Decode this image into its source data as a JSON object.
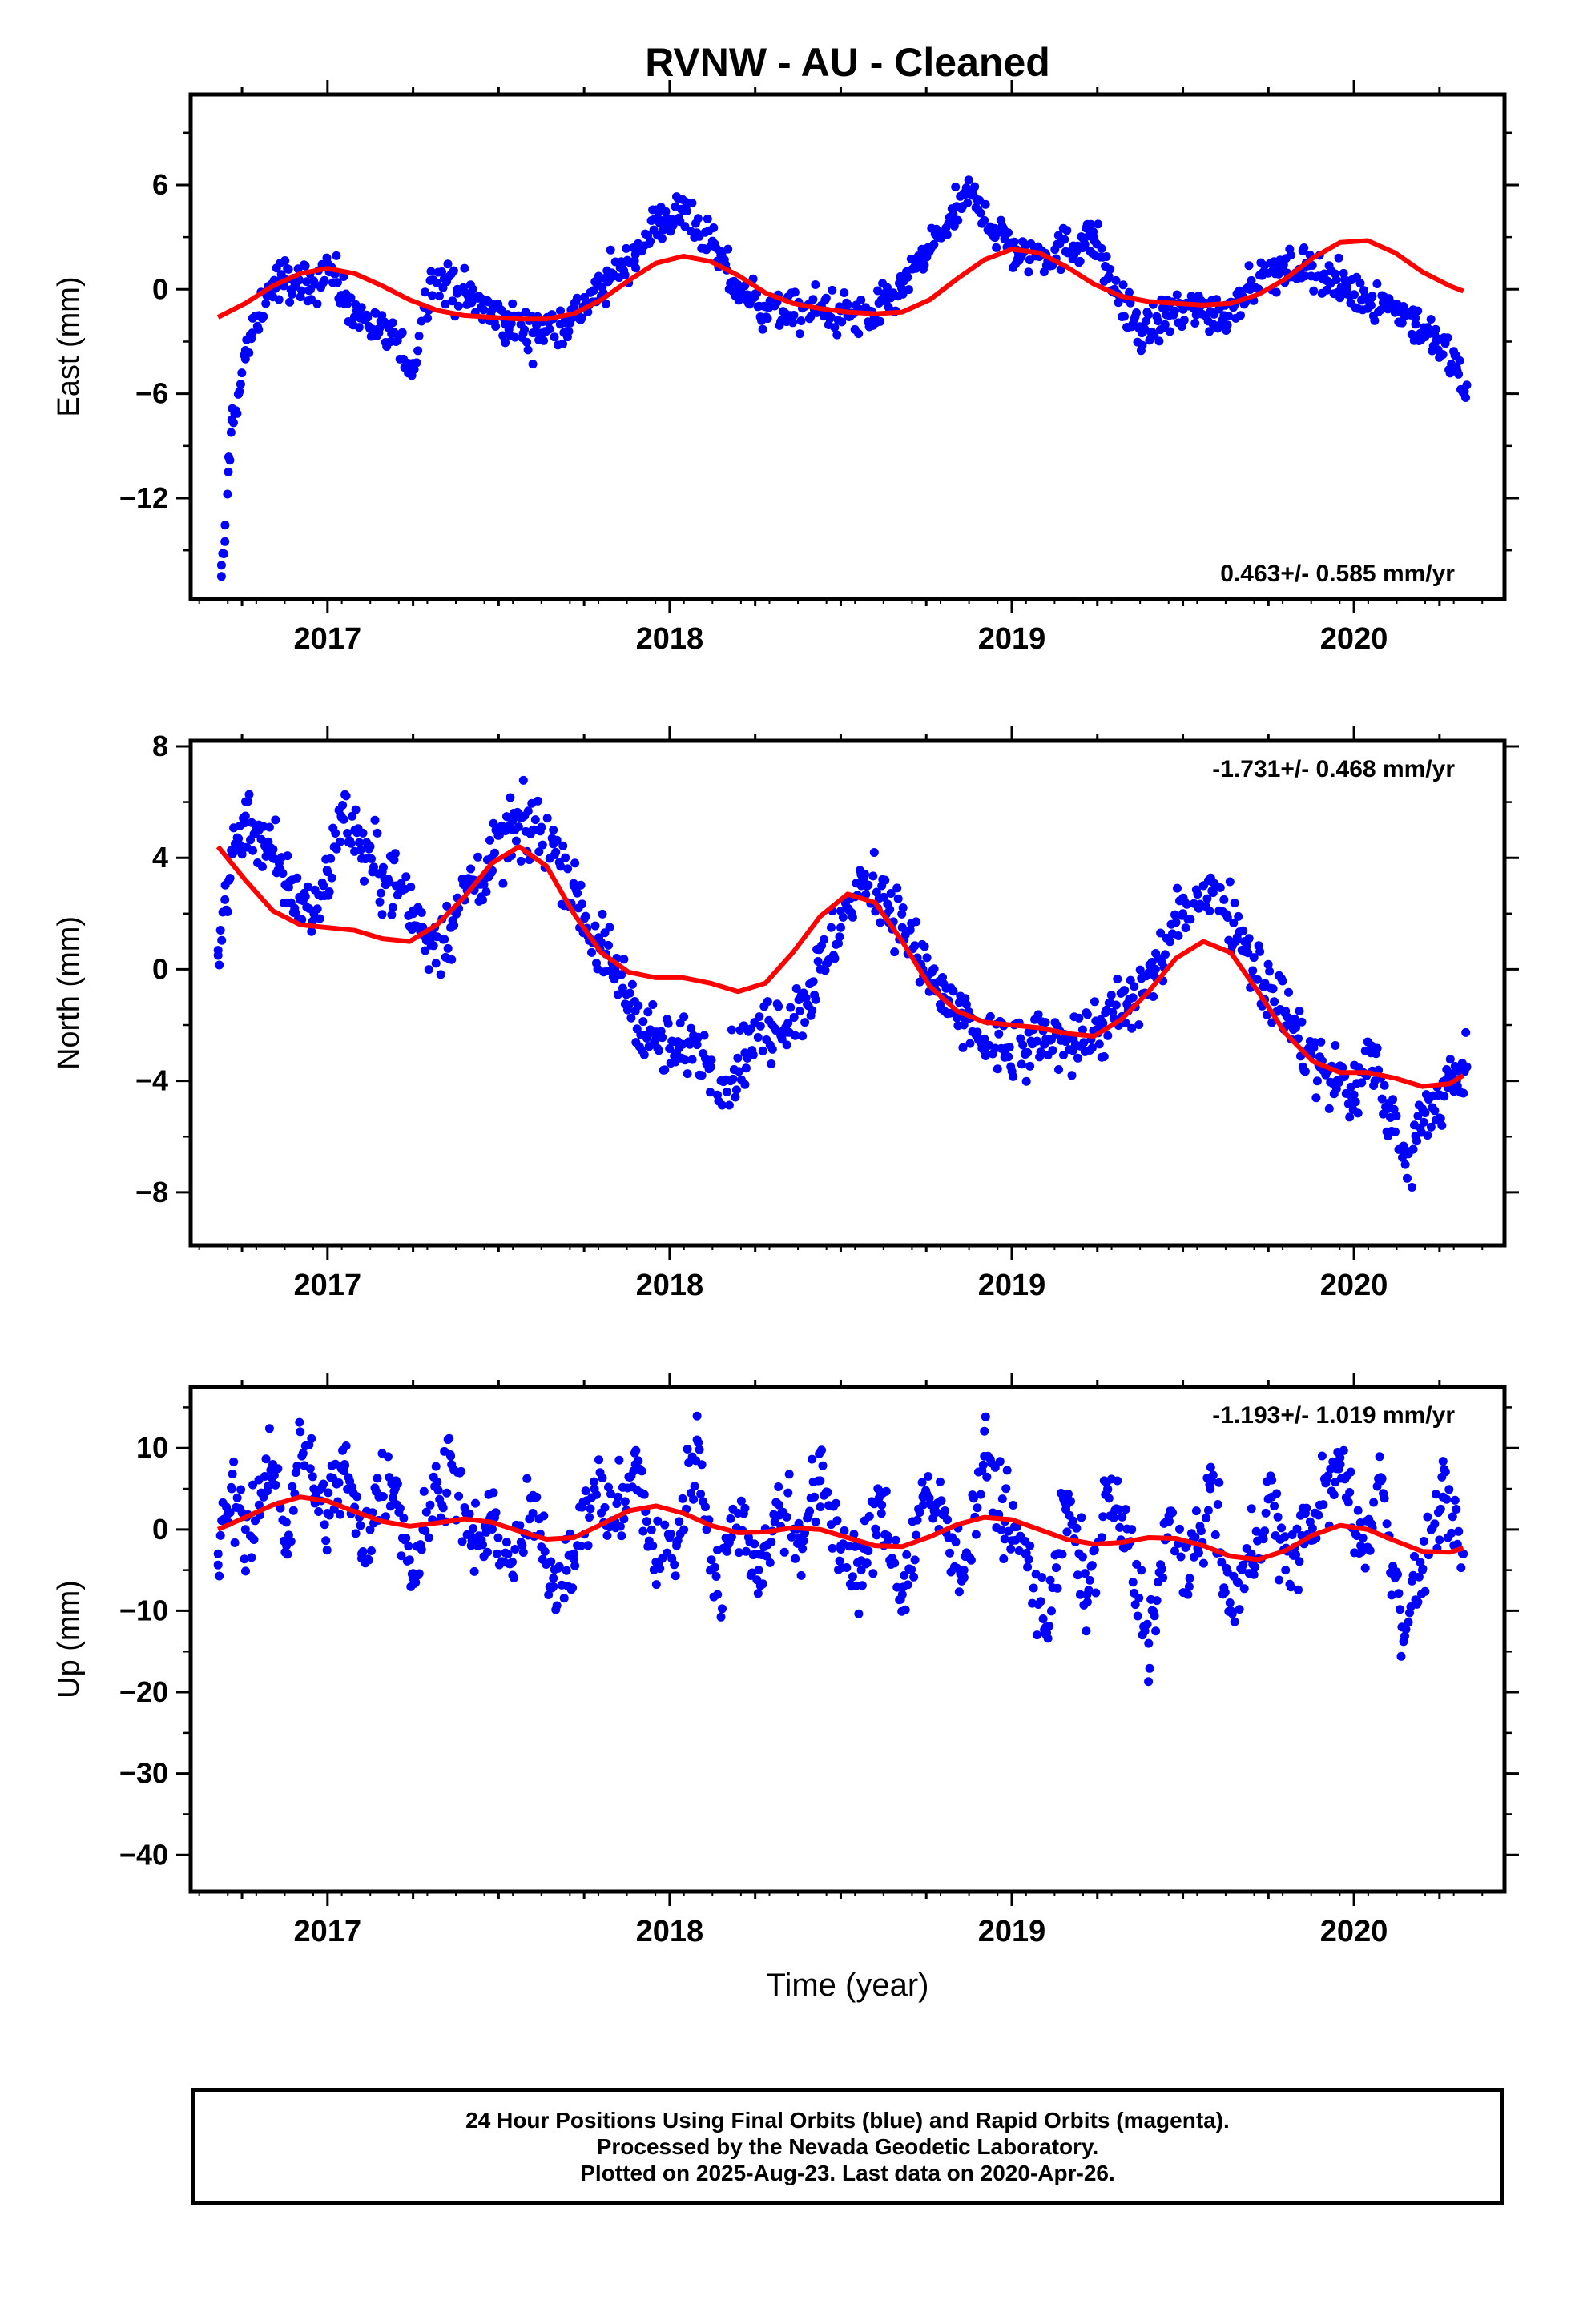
{
  "title": "RVNW  - AU - Cleaned",
  "colors": {
    "points": "#0000ff",
    "fit": "#ff0000",
    "frame": "#000000"
  },
  "footer": {
    "line1": "24 Hour Positions Using Final Orbits (blue) and Rapid Orbits (magenta).",
    "line2": "Processed by the Nevada Geodetic Laboratory.",
    "line3": "Plotted on 2025-Aug-23. Last data on 2020-Apr-26."
  },
  "chart_data": [
    {
      "type": "scatter",
      "ylabel": "East (mm)",
      "xlabel": "",
      "xlim": [
        2016.6,
        2020.44
      ],
      "ylim": [
        -17.8,
        11.2
      ],
      "yticks": [
        -12,
        -6,
        0,
        6
      ],
      "xticks": [
        2017,
        2018,
        2019,
        2020
      ],
      "rate_label": "0.463+/- 0.585 mm/yr",
      "rate_position": "bottom-right",
      "grid": false,
      "series": [
        {
          "type": "scatter",
          "x": [
            2016.69,
            2016.7,
            2016.71,
            2016.72,
            2016.74,
            2016.76,
            2016.78,
            2016.8,
            2016.83,
            2016.86,
            2016.9,
            2016.95,
            2017.0,
            2017.05,
            2017.1,
            2017.15,
            2017.2,
            2017.25,
            2017.3,
            2017.38,
            2017.45,
            2017.52,
            2017.6,
            2017.68,
            2017.75,
            2017.82,
            2017.9,
            2017.97,
            2018.05,
            2018.12,
            2018.2,
            2018.28,
            2018.36,
            2018.44,
            2018.52,
            2018.6,
            2018.68,
            2018.75,
            2018.82,
            2018.88,
            2018.95,
            2019.02,
            2019.1,
            2019.18,
            2019.24,
            2019.3,
            2019.38,
            2019.46,
            2019.55,
            2019.62,
            2019.7,
            2019.78,
            2019.86,
            2019.92,
            2019.98,
            2020.05,
            2020.12,
            2020.18,
            2020.24,
            2020.3,
            2020.33
          ],
          "y": [
            -16.5,
            -14.5,
            -10.5,
            -7.5,
            -6.0,
            -4.0,
            -2.5,
            -1.5,
            0.0,
            0.5,
            0.5,
            0.0,
            1.5,
            -0.5,
            -1.5,
            -2.5,
            -3.0,
            -4.5,
            0.5,
            0.0,
            -1.0,
            -2.0,
            -2.5,
            -2.0,
            -1.0,
            0.5,
            2.0,
            4.0,
            4.5,
            2.5,
            0.0,
            -1.0,
            -1.5,
            -1.0,
            -1.5,
            -1.5,
            0.0,
            2.0,
            4.0,
            5.5,
            3.5,
            2.0,
            2.0,
            2.5,
            3.0,
            0.0,
            -2.5,
            -1.5,
            -1.0,
            -1.5,
            0.5,
            1.0,
            1.5,
            0.5,
            0.0,
            -0.5,
            -1.0,
            -2.0,
            -3.0,
            -4.5,
            -5.5
          ]
        },
        {
          "type": "line",
          "name": "fit",
          "x": [
            2016.68,
            2016.76,
            2016.84,
            2016.92,
            2017.0,
            2017.08,
            2017.16,
            2017.24,
            2017.32,
            2017.4,
            2017.48,
            2017.56,
            2017.64,
            2017.72,
            2017.8,
            2017.88,
            2017.96,
            2018.04,
            2018.12,
            2018.2,
            2018.28,
            2018.36,
            2018.44,
            2018.52,
            2018.6,
            2018.68,
            2018.76,
            2018.84,
            2018.92,
            2019.0,
            2019.08,
            2019.16,
            2019.24,
            2019.32,
            2019.4,
            2019.48,
            2019.56,
            2019.64,
            2019.72,
            2019.8,
            2019.88,
            2019.96,
            2020.04,
            2020.12,
            2020.2,
            2020.28,
            2020.32
          ],
          "y": [
            -1.6,
            -0.8,
            0.2,
            0.9,
            1.2,
            0.9,
            0.2,
            -0.6,
            -1.2,
            -1.5,
            -1.6,
            -1.7,
            -1.7,
            -1.4,
            -0.6,
            0.5,
            1.5,
            1.9,
            1.6,
            0.8,
            -0.2,
            -0.8,
            -1.1,
            -1.3,
            -1.4,
            -1.3,
            -0.6,
            0.6,
            1.7,
            2.3,
            2.1,
            1.3,
            0.3,
            -0.4,
            -0.7,
            -0.8,
            -0.9,
            -0.8,
            -0.3,
            0.6,
            1.8,
            2.7,
            2.8,
            2.1,
            1.0,
            0.2,
            -0.1
          ]
        }
      ]
    },
    {
      "type": "scatter",
      "ylabel": "North (mm)",
      "xlabel": "",
      "xlim": [
        2016.6,
        2020.44
      ],
      "ylim": [
        -9.9,
        8.2
      ],
      "yticks": [
        -8,
        -4,
        0,
        4,
        8
      ],
      "xticks": [
        2017,
        2018,
        2019,
        2020
      ],
      "rate_label": "-1.731+/- 0.468 mm/yr",
      "rate_position": "top-right",
      "grid": false,
      "series": [
        {
          "type": "scatter",
          "x": [
            2016.68,
            2016.7,
            2016.73,
            2016.76,
            2016.8,
            2016.84,
            2016.88,
            2016.92,
            2016.96,
            2017.0,
            2017.04,
            2017.08,
            2017.12,
            2017.16,
            2017.2,
            2017.25,
            2017.3,
            2017.36,
            2017.42,
            2017.48,
            2017.54,
            2017.6,
            2017.66,
            2017.72,
            2017.78,
            2017.84,
            2017.9,
            2017.96,
            2018.02,
            2018.08,
            2018.12,
            2018.16,
            2018.22,
            2018.3,
            2018.38,
            2018.44,
            2018.5,
            2018.56,
            2018.62,
            2018.68,
            2018.74,
            2018.8,
            2018.86,
            2018.92,
            2018.98,
            2019.04,
            2019.1,
            2019.18,
            2019.26,
            2019.34,
            2019.42,
            2019.5,
            2019.56,
            2019.62,
            2019.68,
            2019.74,
            2019.8,
            2019.86,
            2019.9,
            2019.95,
            2020.0,
            2020.05,
            2020.1,
            2020.15,
            2020.2,
            2020.25,
            2020.3,
            2020.33
          ],
          "y": [
            0.5,
            2.5,
            4.5,
            5.5,
            5.0,
            4.0,
            3.0,
            2.5,
            2.0,
            3.5,
            5.5,
            5.0,
            4.0,
            3.5,
            3.0,
            2.0,
            1.0,
            1.5,
            3.0,
            4.0,
            5.0,
            5.0,
            4.5,
            3.0,
            1.0,
            0.0,
            -1.5,
            -2.5,
            -3.0,
            -2.5,
            -3.5,
            -4.0,
            -3.0,
            -2.0,
            -1.5,
            0.0,
            1.5,
            3.0,
            3.0,
            1.5,
            0.0,
            -1.0,
            -2.0,
            -2.5,
            -3.0,
            -3.0,
            -2.5,
            -2.5,
            -2.0,
            -1.5,
            0.0,
            2.0,
            3.0,
            2.5,
            1.0,
            -0.5,
            -1.5,
            -3.0,
            -3.5,
            -4.0,
            -4.5,
            -3.0,
            -5.0,
            -7.0,
            -5.0,
            -4.5,
            -4.0,
            -3.5
          ]
        },
        {
          "type": "line",
          "name": "fit",
          "x": [
            2016.68,
            2016.76,
            2016.84,
            2016.92,
            2017.0,
            2017.08,
            2017.16,
            2017.24,
            2017.32,
            2017.4,
            2017.48,
            2017.56,
            2017.64,
            2017.72,
            2017.8,
            2017.88,
            2017.96,
            2018.04,
            2018.12,
            2018.2,
            2018.28,
            2018.36,
            2018.44,
            2018.52,
            2018.6,
            2018.68,
            2018.76,
            2018.84,
            2018.92,
            2019.0,
            2019.08,
            2019.16,
            2019.24,
            2019.32,
            2019.4,
            2019.48,
            2019.56,
            2019.64,
            2019.72,
            2019.8,
            2019.88,
            2019.96,
            2020.04,
            2020.12,
            2020.2,
            2020.28,
            2020.32
          ],
          "y": [
            4.4,
            3.2,
            2.1,
            1.6,
            1.5,
            1.4,
            1.1,
            1.0,
            1.6,
            2.6,
            3.8,
            4.4,
            3.7,
            2.0,
            0.6,
            -0.1,
            -0.3,
            -0.3,
            -0.5,
            -0.8,
            -0.5,
            0.6,
            1.9,
            2.7,
            2.4,
            1.0,
            -0.6,
            -1.5,
            -1.9,
            -2.0,
            -2.1,
            -2.3,
            -2.4,
            -1.8,
            -0.8,
            0.4,
            1.0,
            0.6,
            -0.8,
            -2.3,
            -3.3,
            -3.7,
            -3.7,
            -3.9,
            -4.2,
            -4.1,
            -3.8
          ]
        }
      ]
    },
    {
      "type": "scatter",
      "ylabel": "Up (mm)",
      "xlabel": "Time (year)",
      "xlim": [
        2016.6,
        2020.44
      ],
      "ylim": [
        -44.5,
        17.5
      ],
      "yticks": [
        -40,
        -30,
        -20,
        -10,
        0,
        10
      ],
      "xticks": [
        2017,
        2018,
        2019,
        2020
      ],
      "rate_label": "-1.193+/- 1.019 mm/yr",
      "rate_position": "top-right",
      "grid": false,
      "series": [
        {
          "type": "scatter",
          "x": [
            2016.68,
            2016.72,
            2016.76,
            2016.8,
            2016.84,
            2016.88,
            2016.92,
            2016.96,
            2017.0,
            2017.05,
            2017.1,
            2017.15,
            2017.2,
            2017.25,
            2017.3,
            2017.36,
            2017.42,
            2017.48,
            2017.54,
            2017.6,
            2017.66,
            2017.72,
            2017.78,
            2017.84,
            2017.9,
            2017.96,
            2018.02,
            2018.08,
            2018.14,
            2018.2,
            2018.26,
            2018.32,
            2018.38,
            2018.44,
            2018.5,
            2018.56,
            2018.62,
            2018.68,
            2018.74,
            2018.8,
            2018.86,
            2018.92,
            2018.98,
            2019.04,
            2019.1,
            2019.16,
            2019.22,
            2019.28,
            2019.34,
            2019.4,
            2019.46,
            2019.52,
            2019.58,
            2019.64,
            2019.7,
            2019.76,
            2019.8,
            2019.9,
            2019.96,
            2020.02,
            2020.08,
            2020.14,
            2020.2,
            2020.26,
            2020.32
          ],
          "y": [
            -3,
            5,
            0,
            3,
            8,
            -2,
            12,
            5,
            2,
            8,
            -3,
            4,
            6,
            -6,
            3,
            9,
            -2,
            1,
            -4,
            2,
            -6,
            -3,
            5,
            1,
            8,
            -4,
            -2,
            11,
            -8,
            2,
            -5,
            3,
            -1,
            6,
            -2,
            -5,
            3,
            -8,
            4,
            2,
            -5,
            9,
            1,
            -3,
            -12,
            3,
            -8,
            5,
            -2,
            -14,
            1,
            -6,
            5,
            -10,
            -3,
            4,
            -5,
            3,
            8,
            -2,
            6,
            -12,
            -5,
            4,
            -3
          ]
        },
        {
          "type": "line",
          "name": "fit",
          "x": [
            2016.68,
            2016.76,
            2016.84,
            2016.92,
            2017.0,
            2017.08,
            2017.16,
            2017.24,
            2017.32,
            2017.4,
            2017.48,
            2017.56,
            2017.64,
            2017.72,
            2017.8,
            2017.88,
            2017.96,
            2018.04,
            2018.12,
            2018.2,
            2018.28,
            2018.36,
            2018.44,
            2018.52,
            2018.6,
            2018.68,
            2018.76,
            2018.84,
            2018.92,
            2019.0,
            2019.08,
            2019.16,
            2019.24,
            2019.32,
            2019.4,
            2019.48,
            2019.56,
            2019.64,
            2019.72,
            2019.8,
            2019.88,
            2019.96,
            2020.04,
            2020.12,
            2020.2,
            2020.28,
            2020.32
          ],
          "y": [
            0.0,
            1.5,
            3.0,
            4.0,
            3.5,
            2.2,
            1.0,
            0.4,
            0.8,
            1.3,
            0.9,
            -0.2,
            -1.2,
            -1.0,
            0.6,
            2.3,
            2.9,
            2.0,
            0.5,
            -0.4,
            -0.3,
            0.2,
            0.0,
            -1.0,
            -2.0,
            -2.1,
            -0.9,
            0.6,
            1.5,
            1.2,
            0.0,
            -1.2,
            -1.8,
            -1.6,
            -1.0,
            -1.1,
            -2.0,
            -3.3,
            -3.7,
            -2.6,
            -0.7,
            0.5,
            0.0,
            -1.4,
            -2.7,
            -2.8,
            -2.3
          ]
        }
      ]
    }
  ]
}
